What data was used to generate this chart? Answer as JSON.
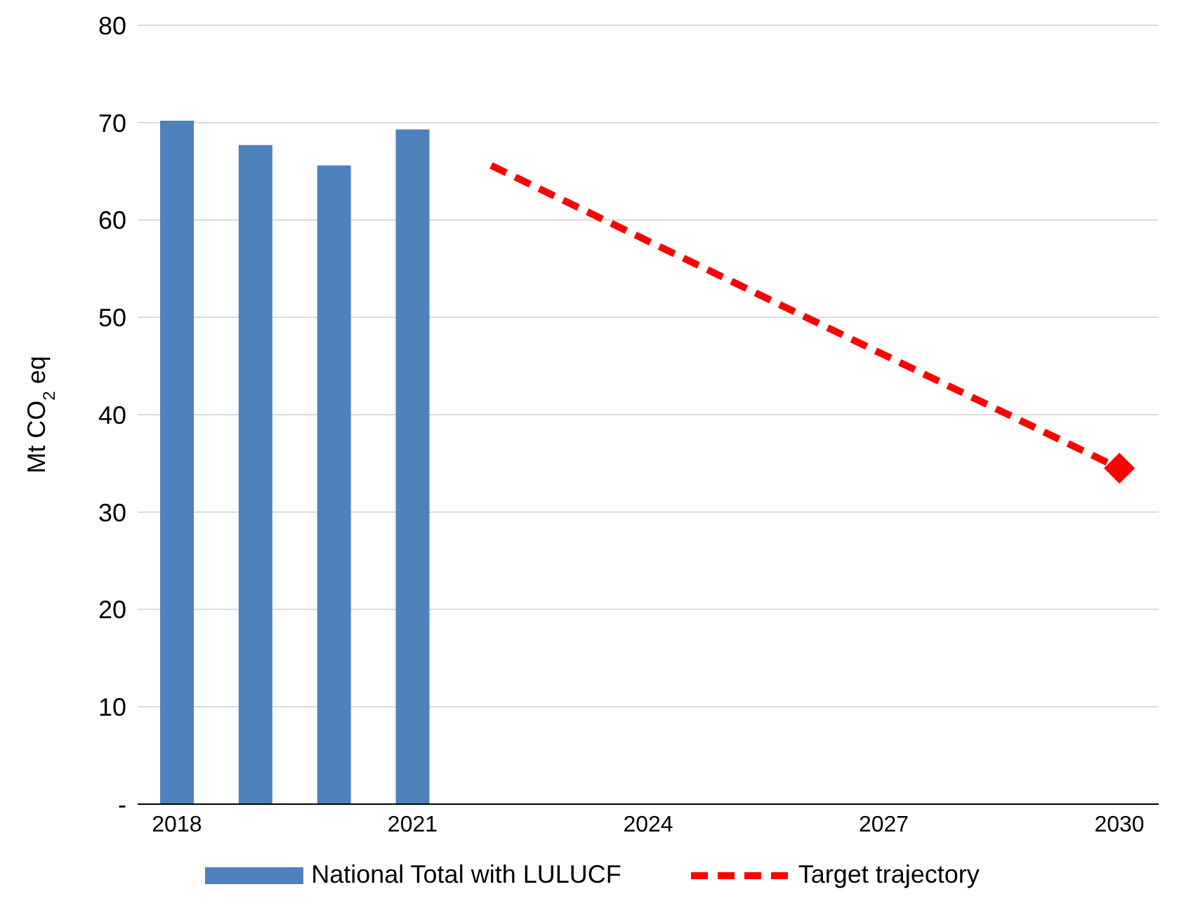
{
  "chart_data": {
    "type": "bar",
    "ylabel": "Mt CO$_{2}$ eq",
    "categories": [
      "2018",
      null,
      null,
      "2021",
      null,
      null,
      "2024",
      null,
      null,
      "2027",
      null,
      null,
      "2030"
    ],
    "series": [
      {
        "name": "National Total with LULUCF",
        "color": "#4f81bd",
        "values": [
          70.2,
          67.7,
          65.6,
          69.3,
          null,
          null,
          null,
          null,
          null,
          null,
          null,
          null,
          null
        ]
      },
      {
        "name": "Target trajectory",
        "type": "line",
        "color": "#ff0000",
        "line_style": "dashed",
        "marker": "diamond",
        "values": [
          null,
          null,
          null,
          null,
          65.6,
          null,
          null,
          null,
          null,
          null,
          null,
          null,
          34.5
        ]
      }
    ],
    "ylim": [
      0,
      80
    ],
    "yticks": [
      {
        "value": 0,
        "label": "-"
      },
      10,
      20,
      30,
      40,
      50,
      60,
      70,
      80
    ],
    "grid": "y",
    "legend": "bottom"
  }
}
